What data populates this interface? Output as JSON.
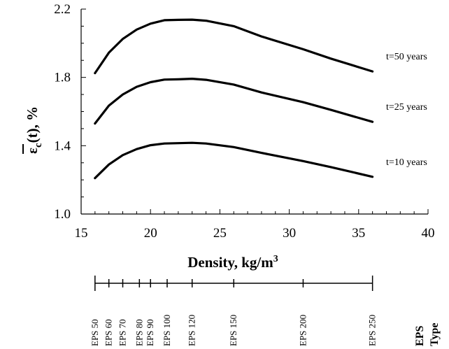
{
  "chart_data": {
    "type": "line",
    "xlabel": "Density, kg/m",
    "xlabel_sup": "3",
    "ylabel_main": "ε",
    "ylabel_sub": "c",
    "ylabel_rest": "(t), %",
    "xlim": [
      15,
      40
    ],
    "ylim": [
      1.0,
      2.2
    ],
    "x_ticks": [
      15,
      20,
      25,
      30,
      35,
      40
    ],
    "x_tick_labels": [
      "15",
      "20",
      "25",
      "30",
      "35",
      "40"
    ],
    "y_ticks": [
      1.0,
      1.4,
      1.8,
      2.2
    ],
    "y_tick_labels": [
      "1.0",
      "1.4",
      "1.8",
      "2.2"
    ],
    "grid": false,
    "legend": "none",
    "x": [
      16,
      17,
      18,
      19,
      20,
      21,
      22,
      23,
      24,
      26,
      28,
      31,
      33,
      36
    ],
    "series": [
      {
        "name": "t=50 years",
        "values": [
          1.825,
          1.945,
          2.025,
          2.08,
          2.115,
          2.135,
          2.137,
          2.138,
          2.132,
          2.1,
          2.04,
          1.965,
          1.91,
          1.835
        ]
      },
      {
        "name": "t=25 years",
        "values": [
          1.53,
          1.635,
          1.7,
          1.745,
          1.772,
          1.787,
          1.789,
          1.792,
          1.786,
          1.758,
          1.712,
          1.655,
          1.61,
          1.54
        ]
      },
      {
        "name": "t=10 years",
        "values": [
          1.21,
          1.29,
          1.345,
          1.38,
          1.403,
          1.413,
          1.415,
          1.417,
          1.413,
          1.392,
          1.358,
          1.31,
          1.275,
          1.218
        ]
      }
    ],
    "eps_type": {
      "title_line1": "EPS",
      "title_line2": "Type",
      "types": [
        {
          "label": "EPS 50",
          "density": 16
        },
        {
          "label": "EPS 60",
          "density": 17
        },
        {
          "label": "EPS 70",
          "density": 18
        },
        {
          "label": "EPS 80",
          "density": 19.2
        },
        {
          "label": "EPS 90",
          "density": 20
        },
        {
          "label": "EPS 100",
          "density": 21.2
        },
        {
          "label": "EPS 120",
          "density": 23
        },
        {
          "label": "EPS 150",
          "density": 26
        },
        {
          "label": "EPS 200",
          "density": 31
        },
        {
          "label": "EPS 250",
          "density": 36
        }
      ]
    }
  }
}
